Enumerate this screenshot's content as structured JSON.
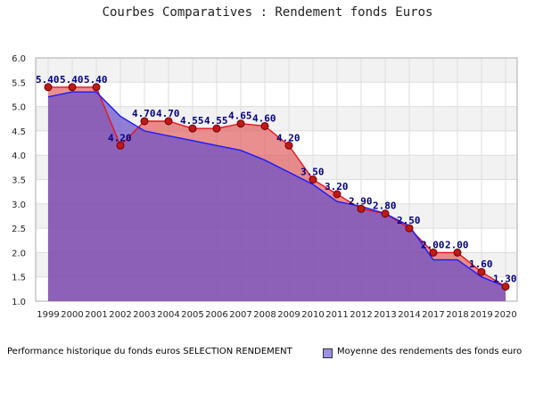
{
  "chart_data": {
    "type": "area",
    "title": "Courbes Comparatives : Rendement fonds Euros",
    "xlabel": "",
    "ylabel": "",
    "ylim": [
      1.0,
      6.0
    ],
    "yticks": [
      "1.0",
      "1.5",
      "2.0",
      "2.5",
      "3.0",
      "3.5",
      "4.0",
      "4.5",
      "5.0",
      "5.5",
      "6.0"
    ],
    "categories": [
      "1999",
      "2000",
      "2001",
      "2002",
      "2003",
      "2004",
      "2005",
      "2006",
      "2007",
      "2008",
      "2009",
      "2010",
      "2011",
      "2012",
      "2013",
      "2014",
      "2017",
      "2018",
      "2019",
      "2020"
    ],
    "series": [
      {
        "name": "Performance historique du fonds euros SELECTION RENDEMENT",
        "color": "#e05050",
        "values": [
          5.4,
          5.4,
          5.4,
          4.2,
          4.7,
          4.7,
          4.55,
          4.55,
          4.65,
          4.6,
          4.2,
          3.5,
          3.2,
          2.9,
          2.8,
          2.5,
          2.0,
          2.0,
          1.6,
          1.3
        ],
        "labels": [
          "5.40",
          "5.40",
          "5.40",
          "4.20",
          "4.70",
          "4.70",
          "4.55",
          "4.55",
          "4.65",
          "4.60",
          "4.20",
          "3.50",
          "3.20",
          "2.90",
          "2.80",
          "2.50",
          "2.00",
          "2.00",
          "1.60",
          "1.30"
        ]
      },
      {
        "name": "Moyenne des rendements des fonds euro",
        "color": "#7b68ee",
        "values": [
          5.2,
          5.3,
          5.3,
          4.8,
          4.5,
          4.4,
          4.3,
          4.2,
          4.1,
          3.9,
          3.65,
          3.4,
          3.05,
          2.95,
          2.8,
          2.55,
          1.85,
          1.85,
          1.5,
          1.3
        ]
      }
    ],
    "legend": "bottom"
  }
}
